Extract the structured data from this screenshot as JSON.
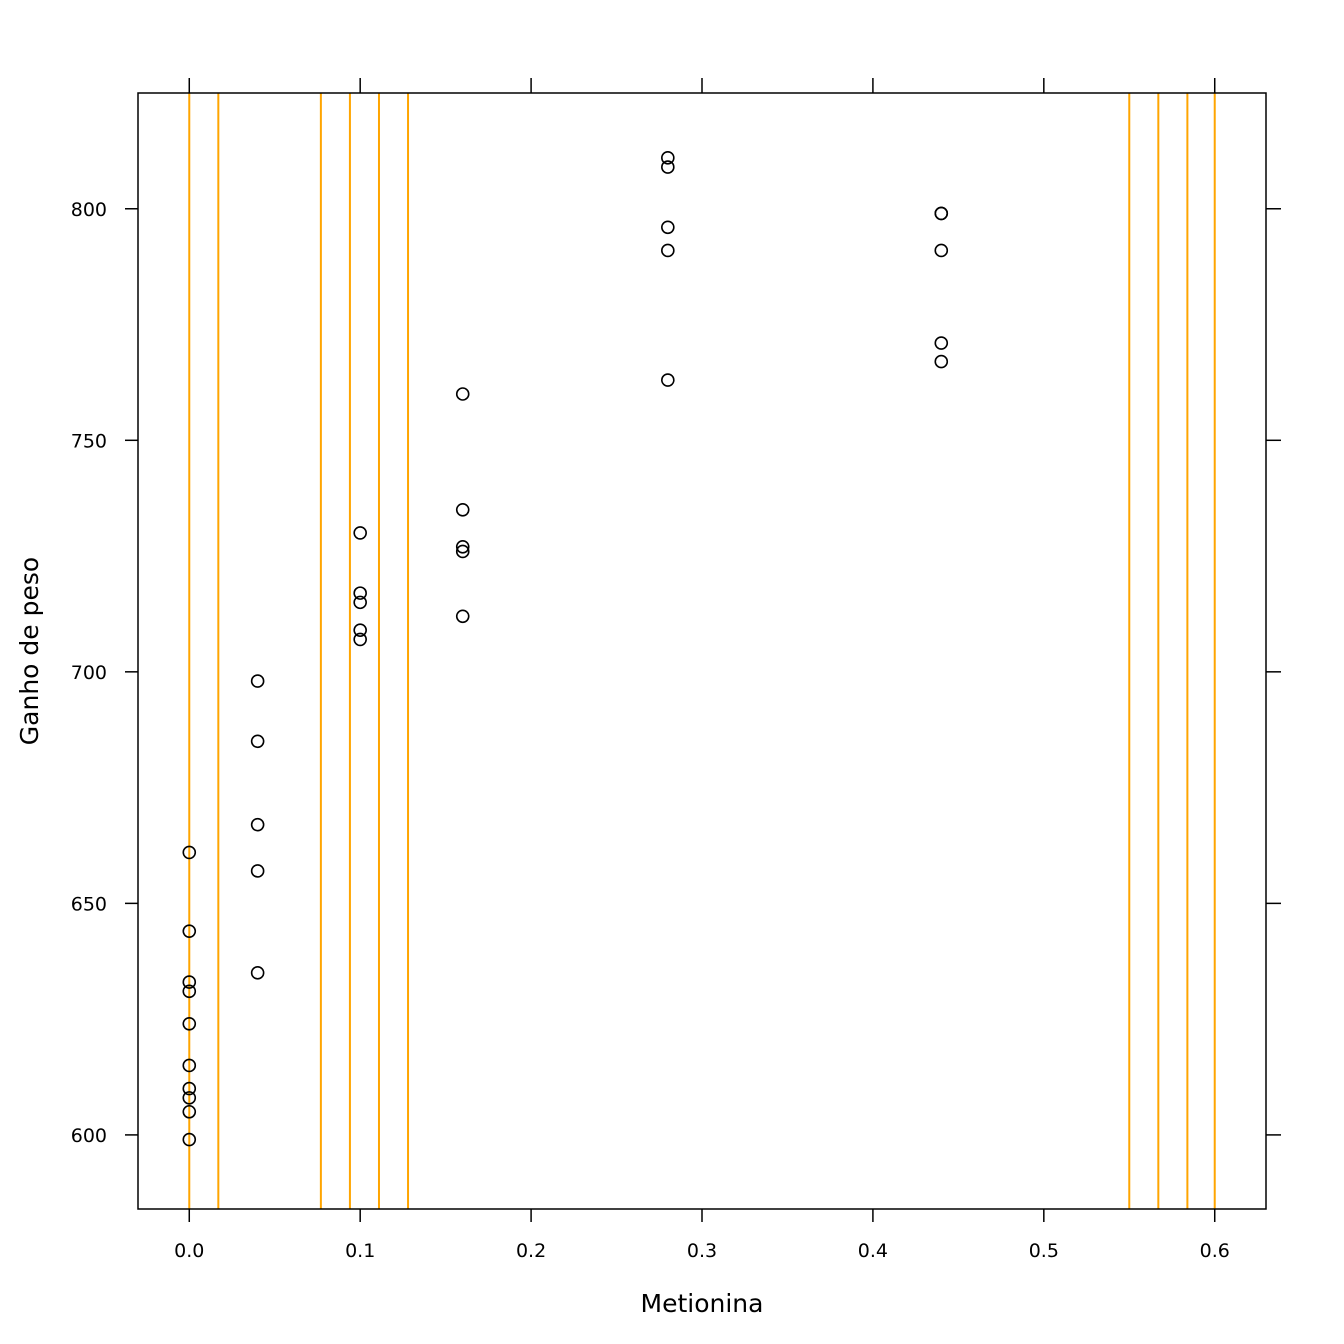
{
  "chart_data": {
    "type": "scatter",
    "title": "",
    "xlabel": "Metionina",
    "ylabel": "Ganho de peso",
    "xlim": [
      -0.03,
      0.63
    ],
    "ylim": [
      584,
      825
    ],
    "x_ticks": [
      0.0,
      0.1,
      0.2,
      0.3,
      0.4,
      0.5,
      0.6
    ],
    "x_tick_labels": [
      "0.0",
      "0.1",
      "0.2",
      "0.3",
      "0.4",
      "0.5",
      "0.6"
    ],
    "y_ticks": [
      600,
      650,
      700,
      750,
      800
    ],
    "y_tick_labels": [
      "600",
      "650",
      "700",
      "750",
      "800"
    ],
    "grid": false,
    "reference_lines_x": [
      0.0,
      0.017,
      0.077,
      0.094,
      0.111,
      0.128,
      0.55,
      0.567,
      0.584,
      0.6
    ],
    "reference_line_color": "#FFA500",
    "point_color": "#000000",
    "points": [
      {
        "x": 0.0,
        "y": 661
      },
      {
        "x": 0.0,
        "y": 644
      },
      {
        "x": 0.0,
        "y": 633
      },
      {
        "x": 0.0,
        "y": 631
      },
      {
        "x": 0.0,
        "y": 624
      },
      {
        "x": 0.0,
        "y": 615
      },
      {
        "x": 0.0,
        "y": 610
      },
      {
        "x": 0.0,
        "y": 608
      },
      {
        "x": 0.0,
        "y": 605
      },
      {
        "x": 0.0,
        "y": 599
      },
      {
        "x": 0.04,
        "y": 698
      },
      {
        "x": 0.04,
        "y": 685
      },
      {
        "x": 0.04,
        "y": 667
      },
      {
        "x": 0.04,
        "y": 657
      },
      {
        "x": 0.04,
        "y": 635
      },
      {
        "x": 0.1,
        "y": 730
      },
      {
        "x": 0.1,
        "y": 717
      },
      {
        "x": 0.1,
        "y": 715
      },
      {
        "x": 0.1,
        "y": 709
      },
      {
        "x": 0.1,
        "y": 707
      },
      {
        "x": 0.16,
        "y": 760
      },
      {
        "x": 0.16,
        "y": 735
      },
      {
        "x": 0.16,
        "y": 727
      },
      {
        "x": 0.16,
        "y": 726
      },
      {
        "x": 0.16,
        "y": 712
      },
      {
        "x": 0.28,
        "y": 811
      },
      {
        "x": 0.28,
        "y": 809
      },
      {
        "x": 0.28,
        "y": 796
      },
      {
        "x": 0.28,
        "y": 791
      },
      {
        "x": 0.28,
        "y": 763
      },
      {
        "x": 0.44,
        "y": 799
      },
      {
        "x": 0.44,
        "y": 799
      },
      {
        "x": 0.44,
        "y": 791
      },
      {
        "x": 0.44,
        "y": 771
      },
      {
        "x": 0.44,
        "y": 767
      }
    ]
  }
}
